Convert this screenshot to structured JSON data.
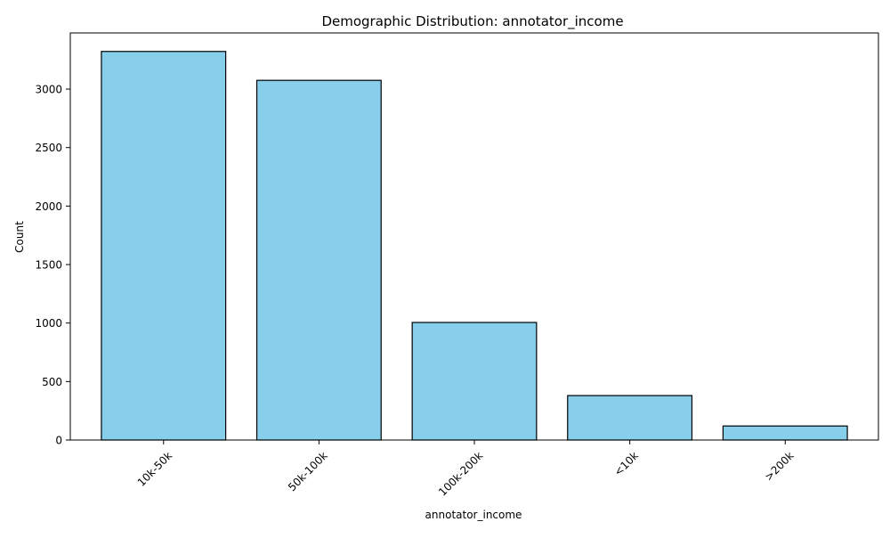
{
  "chart_data": {
    "type": "bar",
    "title": "Demographic Distribution: annotator_income",
    "xlabel": "annotator_income",
    "ylabel": "Count",
    "categories": [
      "10k-50k",
      "50k-100k",
      "100k-200k",
      "<10k",
      ">200k"
    ],
    "values": [
      3322,
      3075,
      1005,
      380,
      120
    ],
    "ylim": [
      0,
      3480
    ],
    "yticks": [
      0,
      500,
      1000,
      1500,
      2000,
      2500,
      3000
    ],
    "grid": false,
    "bar_color": "#87CEEB",
    "bar_edge_color": "#000000"
  }
}
